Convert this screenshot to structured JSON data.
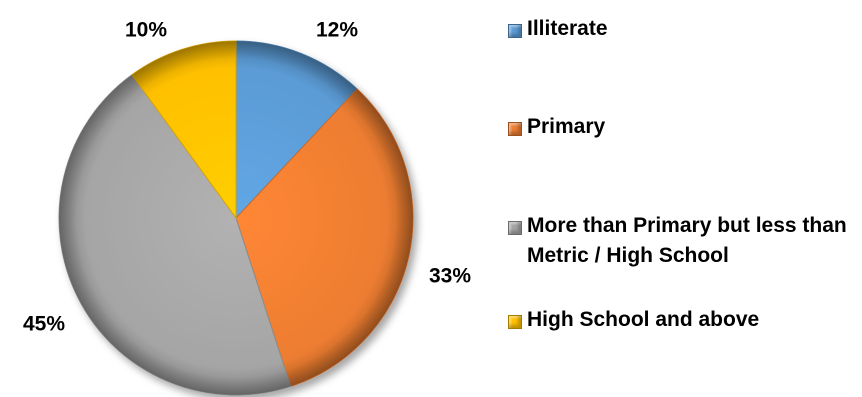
{
  "chart_data": {
    "type": "pie",
    "title": "",
    "start_angle_deg": 0,
    "direction": "clockwise",
    "slices": [
      {
        "label": "Illiterate",
        "value": 12,
        "display": "12%",
        "color": "#5b9bd5"
      },
      {
        "label": "Primary",
        "value": 33,
        "display": "33%",
        "color": "#ed7d31"
      },
      {
        "label": "More than Primary but less than Metric / High School",
        "value": 45,
        "display": "45%",
        "color": "#a5a5a5"
      },
      {
        "label": "High School and above",
        "value": 10,
        "display": "10%",
        "color": "#ffc000"
      }
    ],
    "legend": {
      "position": "right",
      "items": [
        "Illiterate",
        "Primary",
        "More than Primary but less than Metric / High School",
        "High School and above"
      ]
    }
  }
}
